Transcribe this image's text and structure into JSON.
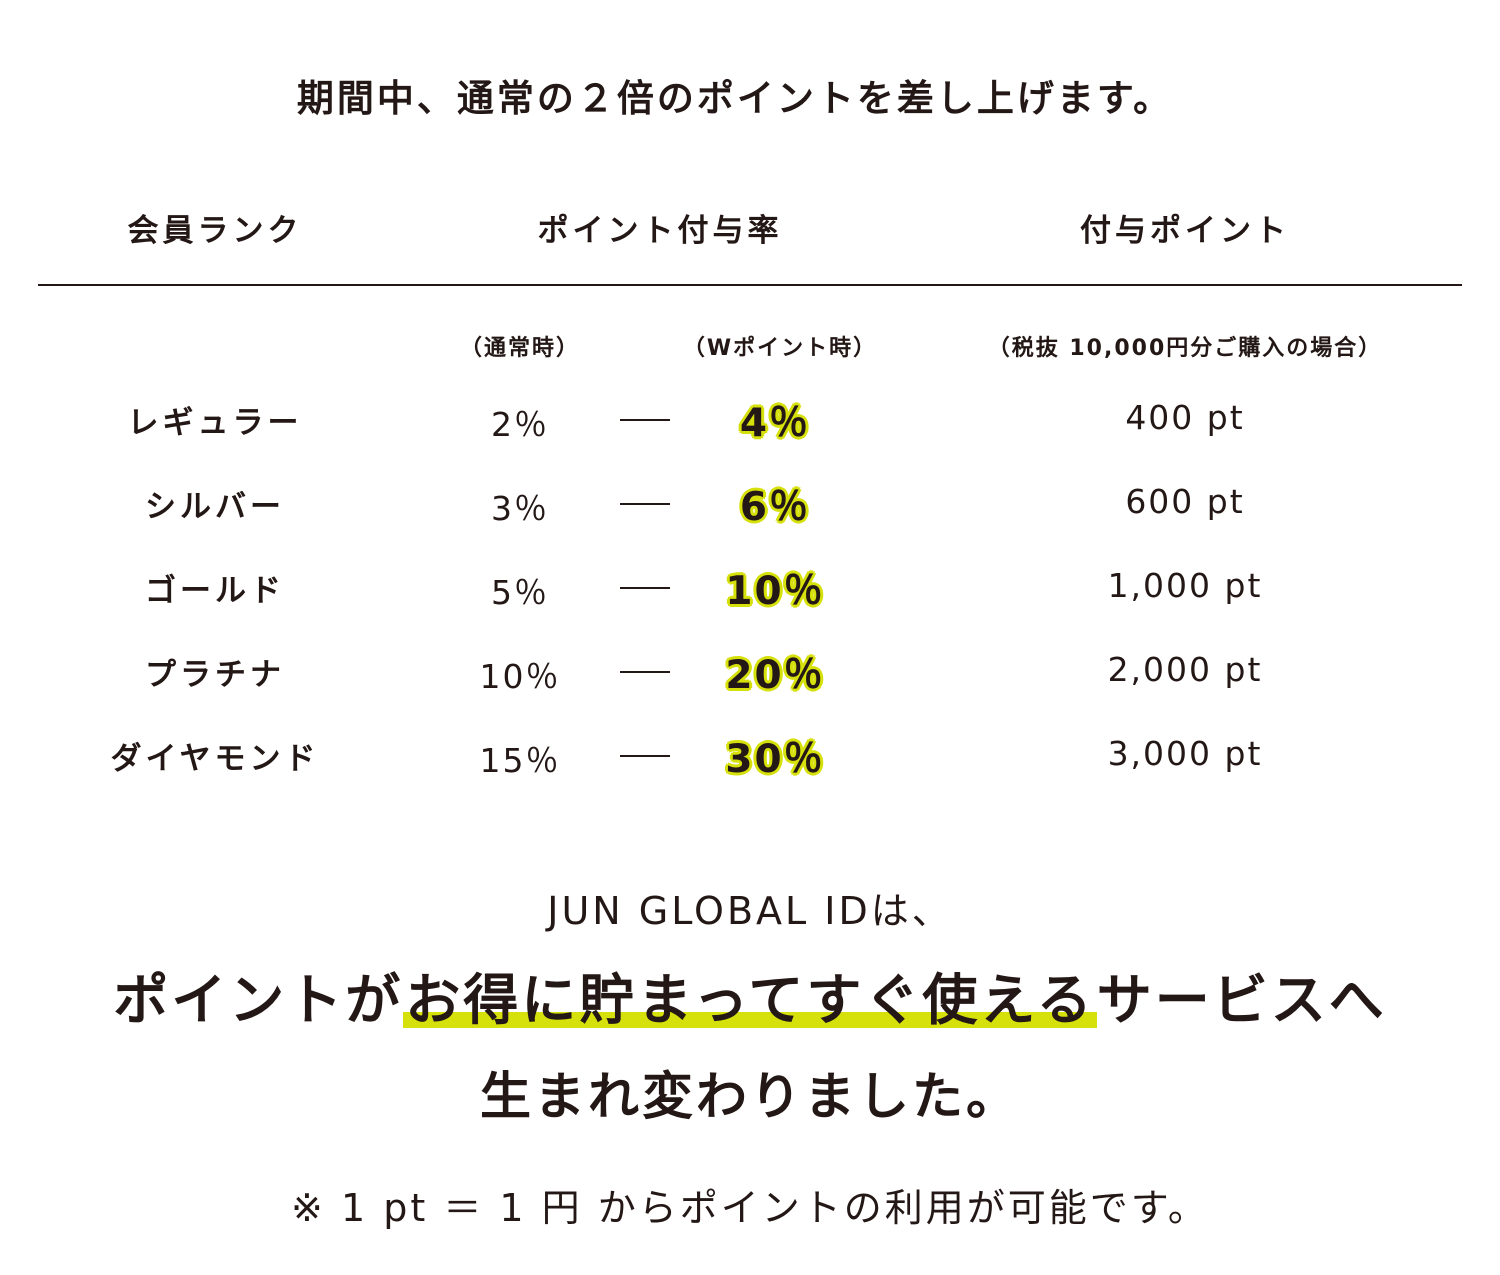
{
  "intro": "期間中、通常の２倍のポイントを差し上げます。",
  "table": {
    "headers": {
      "rank": "会員ランク",
      "rate": "ポイント付与率",
      "points": "付与ポイント"
    },
    "subheaders": {
      "normal": "（通常時）",
      "w_point": "（Wポイント時）",
      "points_note": "（税抜 10,000円分ご購入の場合）"
    },
    "rows": [
      {
        "rank": "レギュラー",
        "normal": "2％",
        "w": "4％",
        "points": "400 pt"
      },
      {
        "rank": "シルバー",
        "normal": "3％",
        "w": "6％",
        "points": "600 pt"
      },
      {
        "rank": "ゴールド",
        "normal": "5％",
        "w": "10％",
        "points": "1,000 pt"
      },
      {
        "rank": "プラチナ",
        "normal": "10％",
        "w": "20％",
        "points": "2,000 pt"
      },
      {
        "rank": "ダイヤモンド",
        "normal": "15％",
        "w": "30％",
        "points": "3,000 pt"
      }
    ]
  },
  "message": {
    "line1": "JUN GLOBAL IDは、",
    "headline_pre": "ポイントが",
    "headline_highlight": "お得に貯まってすぐ使える",
    "headline_post": "サービスへ",
    "line3": "生まれ変わりました。"
  },
  "note": "※ 1 pt ＝ 1 円 からポイントの利用が可能です。",
  "colors": {
    "text": "#231815",
    "highlight": "#d6e00b"
  }
}
